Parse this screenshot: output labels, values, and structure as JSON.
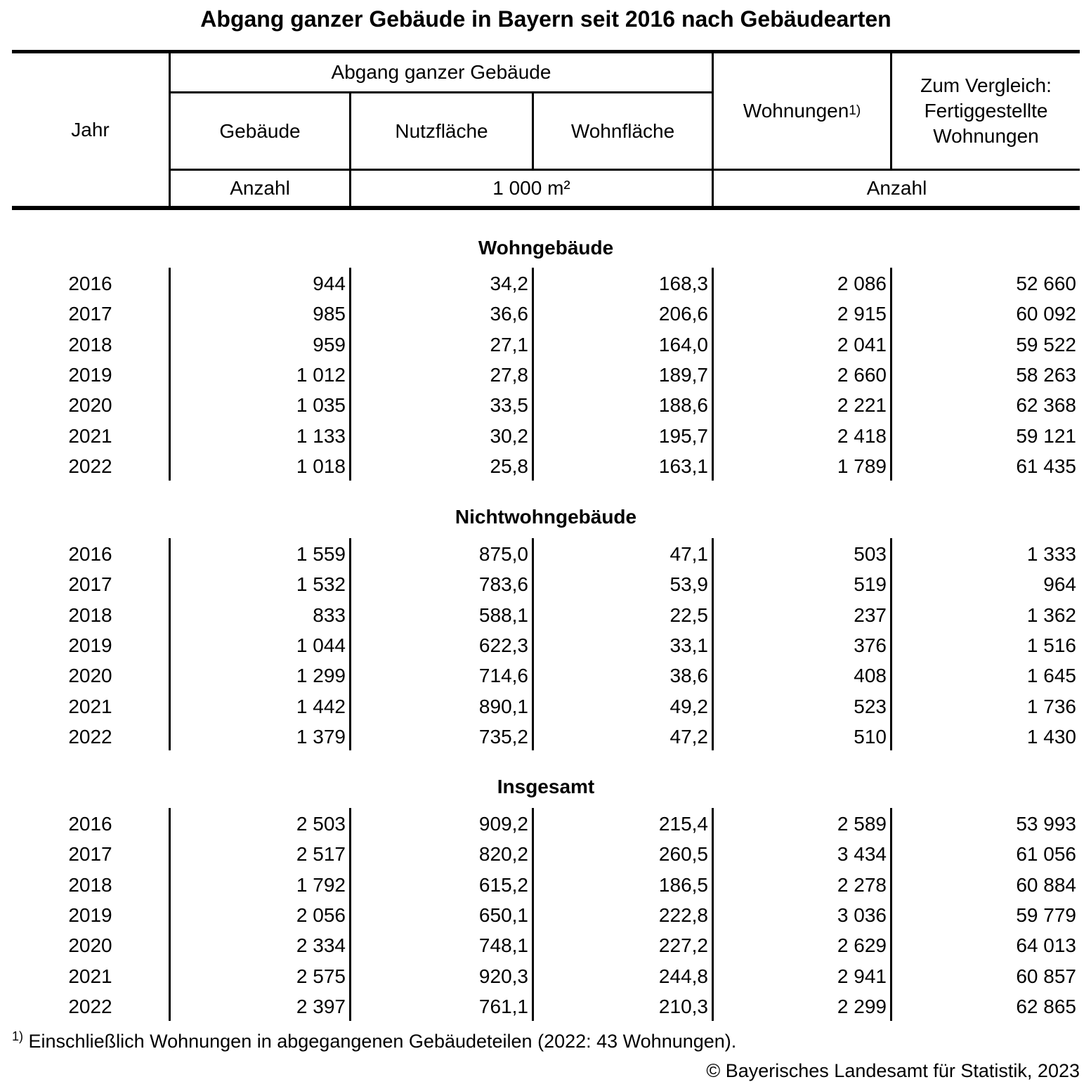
{
  "title": "Abgang ganzer Gebäude in Bayern seit 2016 nach Gebäudearten",
  "header": {
    "jahr": "Jahr",
    "abgang_group": "Abgang ganzer Gebäude",
    "gebaeude": "Gebäude",
    "nutzflaeche": "Nutzfläche",
    "wohnflaeche": "Wohnfläche",
    "wohnungen": "Wohnungen",
    "wohnungen_footnote_mark": "1)",
    "vergleich_lines": [
      "Zum Vergleich:",
      "Fertiggestellte",
      "Wohnungen"
    ],
    "unit_anzahl_left": "Anzahl",
    "unit_qm": "1 000 m²",
    "unit_anzahl_right": "Anzahl"
  },
  "sections": [
    {
      "title": "Wohngebäude",
      "rows": [
        [
          "2016",
          "944",
          "34,2",
          "168,3",
          "2 086",
          "52 660"
        ],
        [
          "2017",
          "985",
          "36,6",
          "206,6",
          "2 915",
          "60 092"
        ],
        [
          "2018",
          "959",
          "27,1",
          "164,0",
          "2 041",
          "59 522"
        ],
        [
          "2019",
          "1 012",
          "27,8",
          "189,7",
          "2 660",
          "58 263"
        ],
        [
          "2020",
          "1 035",
          "33,5",
          "188,6",
          "2 221",
          "62 368"
        ],
        [
          "2021",
          "1 133",
          "30,2",
          "195,7",
          "2 418",
          "59 121"
        ],
        [
          "2022",
          "1 018",
          "25,8",
          "163,1",
          "1 789",
          "61 435"
        ]
      ]
    },
    {
      "title": "Nichtwohngebäude",
      "rows": [
        [
          "2016",
          "1 559",
          "875,0",
          "47,1",
          "503",
          "1 333"
        ],
        [
          "2017",
          "1 532",
          "783,6",
          "53,9",
          "519",
          "964"
        ],
        [
          "2018",
          "833",
          "588,1",
          "22,5",
          "237",
          "1 362"
        ],
        [
          "2019",
          "1 044",
          "622,3",
          "33,1",
          "376",
          "1 516"
        ],
        [
          "2020",
          "1 299",
          "714,6",
          "38,6",
          "408",
          "1 645"
        ],
        [
          "2021",
          "1 442",
          "890,1",
          "49,2",
          "523",
          "1 736"
        ],
        [
          "2022",
          "1 379",
          "735,2",
          "47,2",
          "510",
          "1 430"
        ]
      ]
    },
    {
      "title": "Insgesamt",
      "rows": [
        [
          "2016",
          "2 503",
          "909,2",
          "215,4",
          "2 589",
          "53 993"
        ],
        [
          "2017",
          "2 517",
          "820,2",
          "260,5",
          "3 434",
          "61 056"
        ],
        [
          "2018",
          "1 792",
          "615,2",
          "186,5",
          "2 278",
          "60 884"
        ],
        [
          "2019",
          "2 056",
          "650,1",
          "222,8",
          "3 036",
          "59 779"
        ],
        [
          "2020",
          "2 334",
          "748,1",
          "227,2",
          "2 629",
          "64 013"
        ],
        [
          "2021",
          "2 575",
          "920,3",
          "244,8",
          "2 941",
          "60 857"
        ],
        [
          "2022",
          "2 397",
          "761,1",
          "210,3",
          "2 299",
          "62 865"
        ]
      ]
    }
  ],
  "footnote": {
    "mark": "1)",
    "text": "Einschließlich Wohnungen in abgegangenen Gebäudeteilen (2022: 43 Wohnungen)."
  },
  "copyright": "© Bayerisches Landesamt für Statistik, 2023",
  "colors": {
    "text": "#000000",
    "background": "#ffffff"
  }
}
